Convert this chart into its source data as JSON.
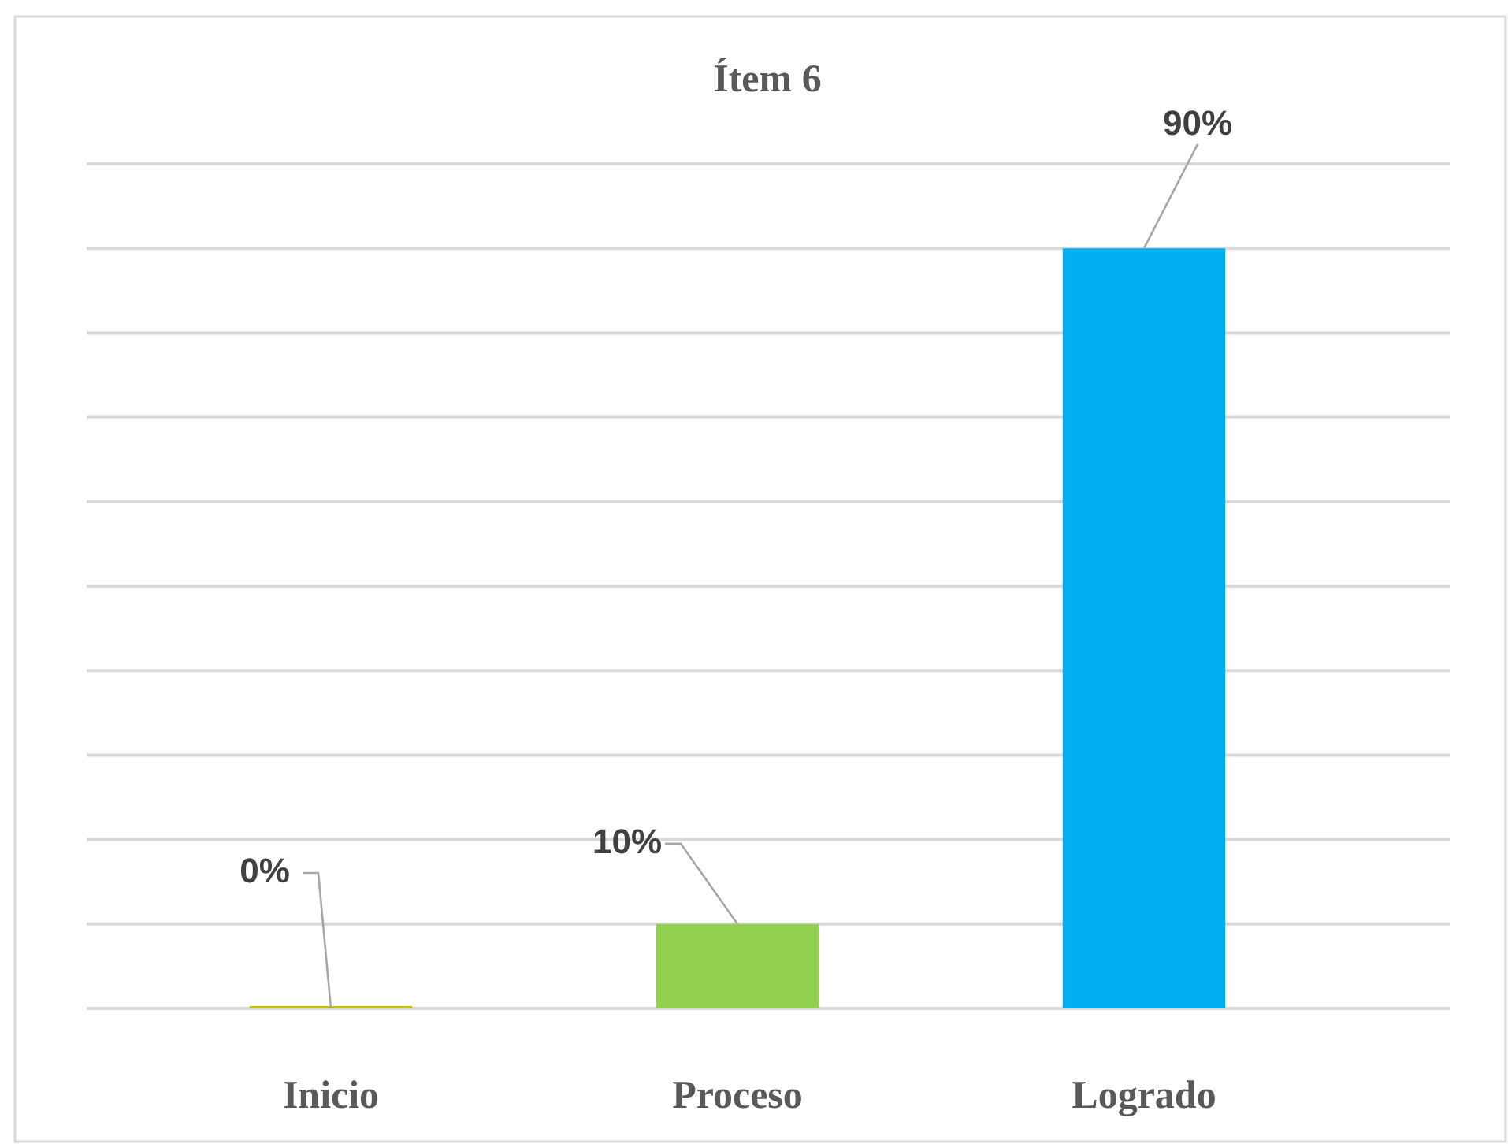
{
  "chart_data": {
    "type": "bar",
    "title": "Ítem 6",
    "categories": [
      "Inicio",
      "Proceso",
      "Logrado"
    ],
    "values": [
      0,
      10,
      90
    ],
    "colors": [
      "#c5c300",
      "#92d050",
      "#00b0f0"
    ],
    "value_labels": [
      "0%",
      "10%",
      "90%"
    ],
    "ylim": [
      0,
      100
    ],
    "yticks": [
      {
        "value": 0,
        "label": null
      },
      {
        "value": 10,
        "label": null
      },
      {
        "value": 20,
        "label": null
      },
      {
        "value": 30,
        "label": null
      },
      {
        "value": 40,
        "label": null
      },
      {
        "value": 50,
        "label": null
      },
      {
        "value": 60,
        "label": null
      },
      {
        "value": 70,
        "label": null
      },
      {
        "value": 80,
        "label": null
      },
      {
        "value": 90,
        "label": null
      },
      {
        "value": 100,
        "label": null
      }
    ],
    "grid": "y",
    "tick_labels": "x"
  }
}
